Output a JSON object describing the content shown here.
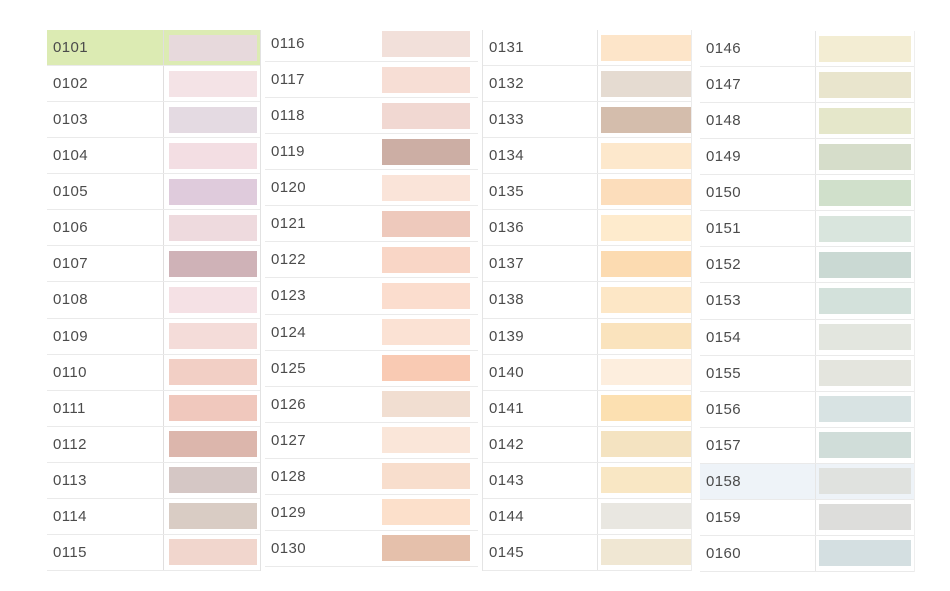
{
  "ui": {
    "text_color": "#4b4b4b",
    "selected_row_bg": "#dcebb3",
    "hovered_row_bg": "#eef3f8",
    "selected_code": "0101",
    "hovered_code": "0158"
  },
  "chart_data": {
    "type": "table",
    "title": "Thread color code palette",
    "columns_layout": "4 side-by-side code/swatch lists",
    "legend_position": "none"
  },
  "palette": {
    "columns": [
      {
        "rows": [
          {
            "code": "0101",
            "swatch": "#e7d9dc"
          },
          {
            "code": "0102",
            "swatch": "#f4e3e6"
          },
          {
            "code": "0103",
            "swatch": "#e4dae2"
          },
          {
            "code": "0104",
            "swatch": "#f3dee3"
          },
          {
            "code": "0105",
            "swatch": "#dfcbdc"
          },
          {
            "code": "0106",
            "swatch": "#eedade"
          },
          {
            "code": "0107",
            "swatch": "#cfb2b7"
          },
          {
            "code": "0108",
            "swatch": "#f5e1e5"
          },
          {
            "code": "0109",
            "swatch": "#f4dcd9"
          },
          {
            "code": "0110",
            "swatch": "#f2cfc5"
          },
          {
            "code": "0111",
            "swatch": "#f0c8bd"
          },
          {
            "code": "0112",
            "swatch": "#dcb6ac"
          },
          {
            "code": "0113",
            "swatch": "#d5c7c5"
          },
          {
            "code": "0114",
            "swatch": "#d9ccc4"
          },
          {
            "code": "0115",
            "swatch": "#f1d6cd"
          }
        ]
      },
      {
        "rows": [
          {
            "code": "0116",
            "swatch": "#f2e0da"
          },
          {
            "code": "0117",
            "swatch": "#f7ded5"
          },
          {
            "code": "0118",
            "swatch": "#f1d8d2"
          },
          {
            "code": "0119",
            "swatch": "#ccaea4"
          },
          {
            "code": "0120",
            "swatch": "#fae4d9"
          },
          {
            "code": "0121",
            "swatch": "#eec9bc"
          },
          {
            "code": "0122",
            "swatch": "#f9d6c6"
          },
          {
            "code": "0123",
            "swatch": "#fbddce"
          },
          {
            "code": "0124",
            "swatch": "#fbe2d4"
          },
          {
            "code": "0125",
            "swatch": "#f9cab3"
          },
          {
            "code": "0126",
            "swatch": "#f1ded1"
          },
          {
            "code": "0127",
            "swatch": "#fae6d9"
          },
          {
            "code": "0128",
            "swatch": "#f8decd"
          },
          {
            "code": "0129",
            "swatch": "#fce0cb"
          },
          {
            "code": "0130",
            "swatch": "#e5c0ab"
          }
        ]
      },
      {
        "rows": [
          {
            "code": "0131",
            "swatch": "#fde5c9"
          },
          {
            "code": "0132",
            "swatch": "#e5dbd1"
          },
          {
            "code": "0133",
            "swatch": "#d4bdac"
          },
          {
            "code": "0134",
            "swatch": "#fde8cc"
          },
          {
            "code": "0135",
            "swatch": "#fcddbb"
          },
          {
            "code": "0136",
            "swatch": "#feebcd"
          },
          {
            "code": "0137",
            "swatch": "#fcdbb1"
          },
          {
            "code": "0138",
            "swatch": "#fde7c6"
          },
          {
            "code": "0139",
            "swatch": "#fae3bd"
          },
          {
            "code": "0140",
            "swatch": "#fdeede"
          },
          {
            "code": "0141",
            "swatch": "#fce0b1"
          },
          {
            "code": "0142",
            "swatch": "#f4e3c1"
          },
          {
            "code": "0143",
            "swatch": "#f9e7c4"
          },
          {
            "code": "0144",
            "swatch": "#e9e7e1"
          },
          {
            "code": "0145",
            "swatch": "#f0e7d3"
          }
        ]
      },
      {
        "rows": [
          {
            "code": "0146",
            "swatch": "#f3edd3"
          },
          {
            "code": "0147",
            "swatch": "#e9e5cd"
          },
          {
            "code": "0148",
            "swatch": "#e5e7ca"
          },
          {
            "code": "0149",
            "swatch": "#d6ddca"
          },
          {
            "code": "0150",
            "swatch": "#d0e0cb"
          },
          {
            "code": "0151",
            "swatch": "#d9e5dd"
          },
          {
            "code": "0152",
            "swatch": "#cad9d3"
          },
          {
            "code": "0153",
            "swatch": "#d3e1db"
          },
          {
            "code": "0154",
            "swatch": "#e3e6df"
          },
          {
            "code": "0155",
            "swatch": "#e4e5de"
          },
          {
            "code": "0156",
            "swatch": "#d8e3e3"
          },
          {
            "code": "0157",
            "swatch": "#d0ddd9"
          },
          {
            "code": "0158",
            "swatch": "#e0e2df"
          },
          {
            "code": "0159",
            "swatch": "#dddddb"
          },
          {
            "code": "0160",
            "swatch": "#d4dfe1"
          }
        ]
      }
    ]
  }
}
